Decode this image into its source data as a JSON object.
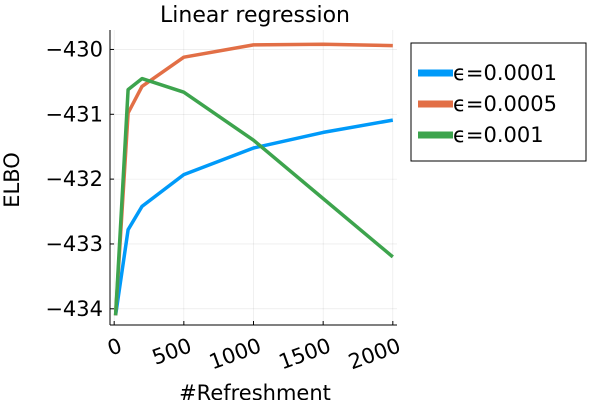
{
  "chart_data": {
    "type": "line",
    "title": "Linear regression",
    "xlabel": "#Refreshment",
    "ylabel": "ELBO",
    "x": [
      10,
      100,
      200,
      500,
      1000,
      1500,
      2000
    ],
    "xticks": [
      0,
      500,
      1000,
      1500,
      2000
    ],
    "xtick_labels": [
      "0",
      "500",
      "1000",
      "1500",
      "2000"
    ],
    "yticks": [
      -434,
      -433,
      -432,
      -431,
      -430
    ],
    "ytick_labels": [
      "−434",
      "−433",
      "−432",
      "−431",
      "−430"
    ],
    "xlim": [
      -30,
      2030
    ],
    "ylim": [
      -434.25,
      -429.7
    ],
    "grid": true,
    "legend_position": "right",
    "series": [
      {
        "name": "ϵ=0.0001",
        "color": "#009af9",
        "values": [
          -434.1,
          -432.78,
          -432.42,
          -431.93,
          -431.52,
          -431.28,
          -431.09
        ]
      },
      {
        "name": "ϵ=0.0005",
        "color": "#e26f46",
        "values": [
          -434.1,
          -430.98,
          -430.57,
          -430.12,
          -429.93,
          -429.92,
          -429.94
        ]
      },
      {
        "name": "ϵ=0.001",
        "color": "#3da44d",
        "values": [
          -434.1,
          -430.62,
          -430.45,
          -430.66,
          -431.4,
          -432.3,
          -433.2
        ]
      }
    ]
  }
}
